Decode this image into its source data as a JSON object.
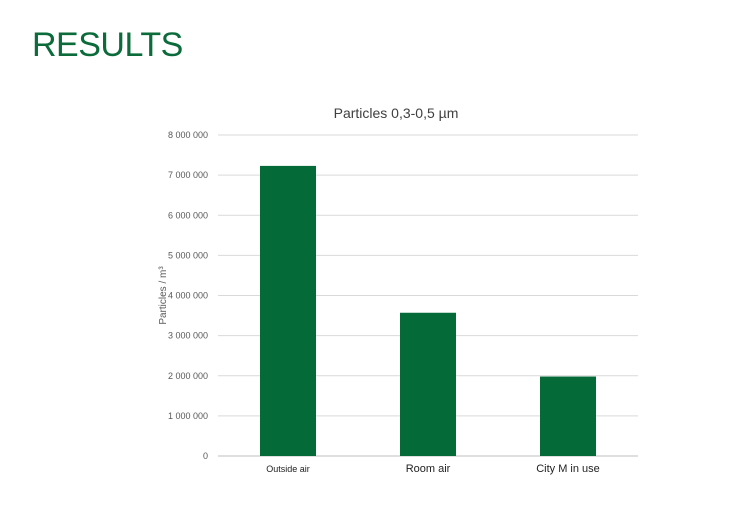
{
  "slide": {
    "title": "RESULTS",
    "title_color": "#0B6B3A"
  },
  "chart_data": {
    "type": "bar",
    "title": "Particles 0,3-0,5 µm",
    "ylabel": "Particles / m³",
    "xlabel": "",
    "categories": [
      "Outside air",
      "Room air",
      "City M in use"
    ],
    "values": [
      7230000,
      3570000,
      1980000
    ],
    "ylim": [
      0,
      8000000
    ],
    "yticks": [
      0,
      1000000,
      2000000,
      3000000,
      4000000,
      5000000,
      6000000,
      7000000,
      8000000
    ],
    "ytick_labels": [
      "0",
      "1 000 000",
      "2 000 000",
      "3 000 000",
      "4 000 000",
      "5 000 000",
      "6 000 000",
      "7 000 000",
      "8 000 000"
    ],
    "bar_color": "#046A38",
    "grid": true,
    "legend": "none"
  }
}
